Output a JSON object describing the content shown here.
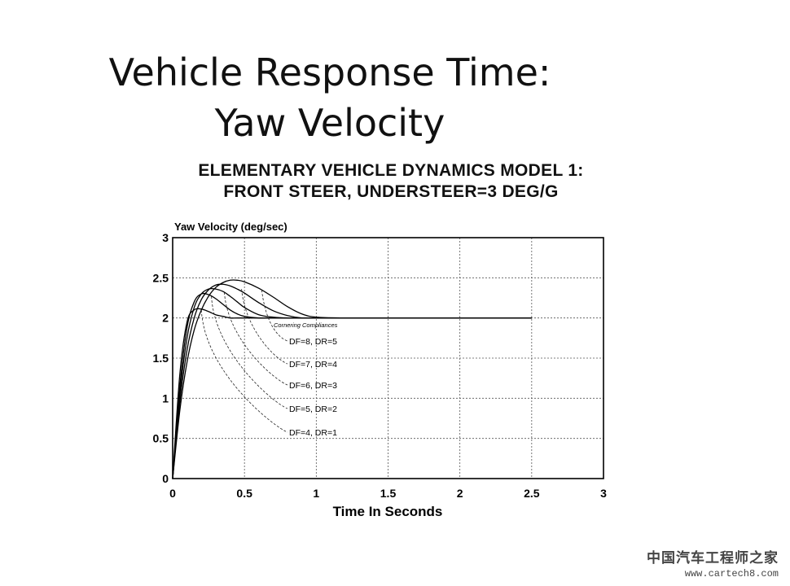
{
  "slide": {
    "title_line1": "Vehicle Response Time:",
    "title_line2": "Yaw Velocity"
  },
  "watermark": {
    "site_name": "中国汽车工程师之家",
    "url": "www.cartech8.com"
  },
  "chart_data": {
    "type": "line",
    "title_line1": "ELEMENTARY VEHICLE DYNAMICS MODEL 1:",
    "title_line2": "FRONT STEER, UNDERSTEER=3 DEG/G",
    "ylabel": "Yaw Velocity (deg/sec)",
    "xlabel": "Time In Seconds",
    "xlim": [
      0,
      3
    ],
    "ylim": [
      0,
      3
    ],
    "x_ticks": [
      "0",
      "0.5",
      "1",
      "1.5",
      "2",
      "2.5",
      "3"
    ],
    "y_ticks": [
      "0",
      "0.5",
      "1",
      "1.5",
      "2",
      "2.5",
      "3"
    ],
    "grid": true,
    "annotation_header": "Cornering Compliances",
    "series": [
      {
        "name": "DF=8, DR=5",
        "x": [
          0,
          0.05,
          0.1,
          0.15,
          0.2,
          0.25,
          0.3,
          0.35,
          0.4,
          0.45,
          0.5,
          0.6,
          0.7,
          0.8,
          0.9,
          1.0,
          1.2,
          1.5,
          2.0,
          2.5
        ],
        "y": [
          0,
          0.85,
          1.45,
          1.85,
          2.1,
          2.27,
          2.38,
          2.44,
          2.47,
          2.47,
          2.45,
          2.37,
          2.26,
          2.14,
          2.05,
          2.01,
          2.0,
          2.0,
          2.0,
          2.0
        ]
      },
      {
        "name": "DF=7, DR=4",
        "x": [
          0,
          0.05,
          0.1,
          0.15,
          0.2,
          0.25,
          0.3,
          0.35,
          0.4,
          0.45,
          0.5,
          0.6,
          0.7,
          0.8,
          0.9,
          1.0,
          1.5,
          2.0,
          2.5
        ],
        "y": [
          0,
          0.95,
          1.6,
          2.0,
          2.23,
          2.35,
          2.41,
          2.42,
          2.4,
          2.36,
          2.31,
          2.19,
          2.09,
          2.03,
          2.0,
          2.0,
          2.0,
          2.0,
          2.0
        ]
      },
      {
        "name": "DF=6, DR=3",
        "x": [
          0,
          0.05,
          0.1,
          0.15,
          0.2,
          0.25,
          0.3,
          0.35,
          0.4,
          0.45,
          0.5,
          0.6,
          0.7,
          0.8,
          1.0,
          1.5,
          2.0,
          2.5
        ],
        "y": [
          0,
          1.05,
          1.75,
          2.13,
          2.3,
          2.36,
          2.36,
          2.33,
          2.27,
          2.2,
          2.13,
          2.04,
          2.01,
          2.0,
          2.0,
          2.0,
          2.0,
          2.0
        ]
      },
      {
        "name": "DF=5, DR=2",
        "x": [
          0,
          0.05,
          0.1,
          0.15,
          0.2,
          0.25,
          0.3,
          0.35,
          0.4,
          0.45,
          0.5,
          0.6,
          0.7,
          1.0,
          1.5,
          2.0,
          2.5
        ],
        "y": [
          0,
          1.15,
          1.88,
          2.2,
          2.3,
          2.29,
          2.24,
          2.17,
          2.1,
          2.05,
          2.02,
          2.0,
          2.0,
          2.0,
          2.0,
          2.0,
          2.0
        ]
      },
      {
        "name": "DF=4, DR=1",
        "x": [
          0,
          0.05,
          0.1,
          0.15,
          0.2,
          0.25,
          0.3,
          0.35,
          0.4,
          0.45,
          0.5,
          0.6,
          1.0,
          1.5,
          2.0,
          2.5
        ],
        "y": [
          0,
          1.3,
          1.95,
          2.1,
          2.11,
          2.08,
          2.04,
          2.02,
          2.0,
          2.0,
          2.0,
          2.0,
          2.0,
          2.0,
          2.0,
          2.0
        ]
      }
    ]
  }
}
